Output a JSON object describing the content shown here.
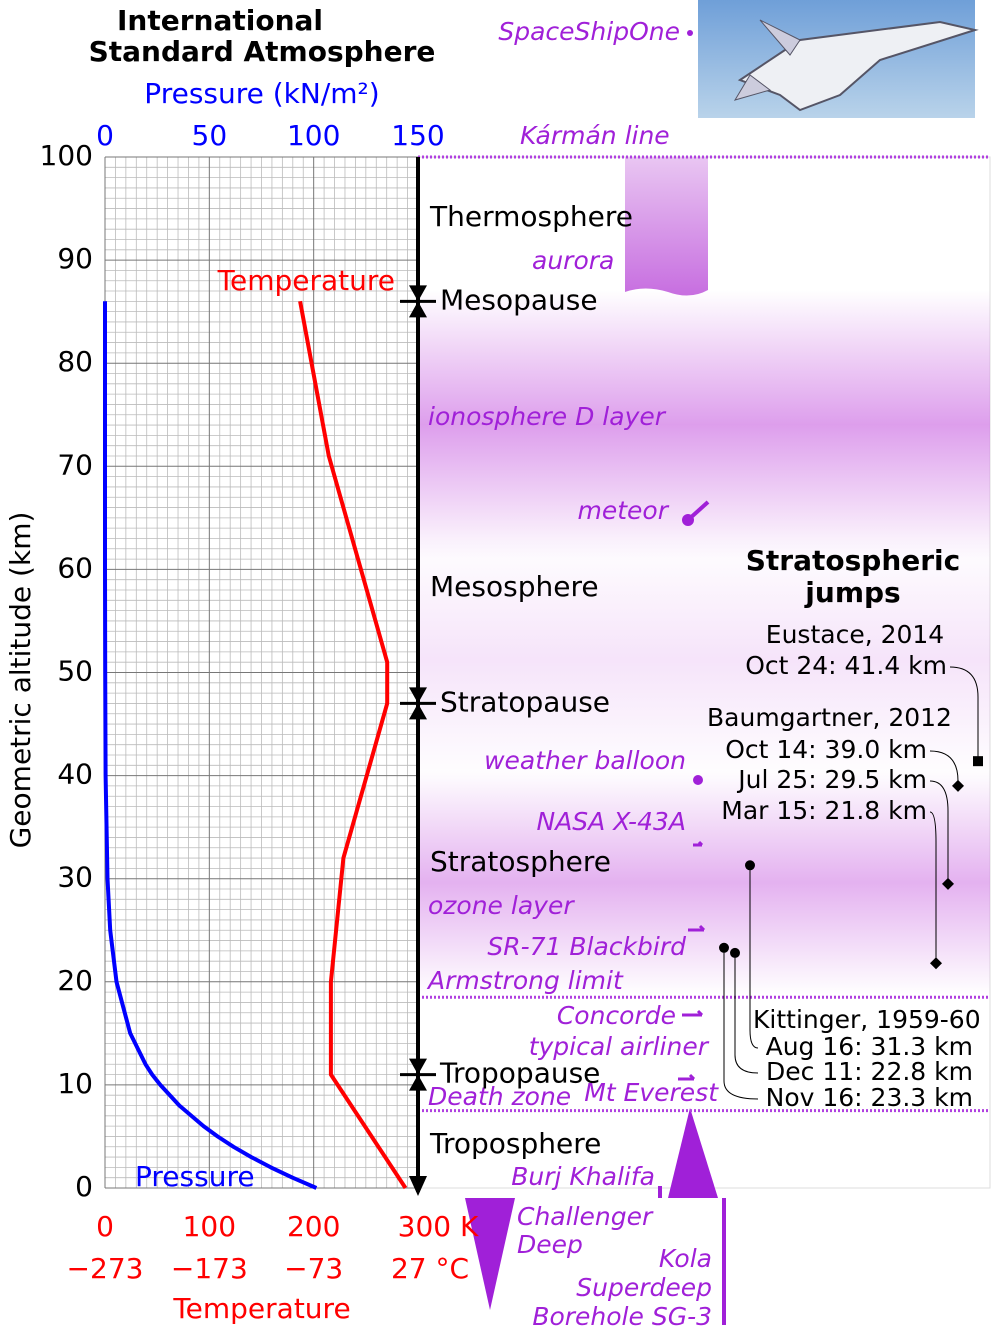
{
  "chart_data": {
    "type": "line",
    "title": [
      "International",
      "Standard Atmosphere"
    ],
    "y_label": "Geometric altitude (km)",
    "x_label": "Pressure (kN/m²)",
    "x2_label": "Temperature",
    "ylim": [
      0,
      100
    ],
    "yticks": [
      0,
      10,
      20,
      30,
      40,
      50,
      60,
      70,
      80,
      90,
      100
    ],
    "xlim": [
      0,
      150
    ],
    "xticks": [
      0,
      50,
      100,
      150
    ],
    "x2lim": [
      0,
      300
    ],
    "x2ticks": [
      0,
      100,
      200,
      {
        "value": 300,
        "label": "300 K"
      }
    ],
    "x3lim": [
      -273,
      27
    ],
    "x3ticks": [
      {
        "value": -273,
        "label": "−273"
      },
      {
        "value": -173,
        "label": "−173"
      },
      {
        "value": -73,
        "label": "−73"
      },
      {
        "value": 27,
        "label": "27 °C"
      }
    ],
    "grid": true,
    "series": [
      {
        "name": "Pressure",
        "color": "#0000ff",
        "axis": "x",
        "x": [
          101.3,
          89.9,
          79.5,
          70.1,
          61.6,
          54.0,
          47.2,
          35.6,
          26.5,
          22.6,
          19.4,
          12.1,
          5.5,
          2.5,
          1.2,
          0.29,
          0.08,
          0.02,
          0.005,
          0.0004
        ],
        "values": [
          0,
          1,
          2,
          3,
          4,
          5,
          6,
          8,
          10,
          11,
          12,
          15,
          20,
          25,
          30,
          40,
          50,
          60,
          70,
          86
        ]
      },
      {
        "name": "Temperature",
        "color": "#ff0000",
        "axis": "x2",
        "x": [
          288,
          216.5,
          216.5,
          228.5,
          270.5,
          270.5,
          214.5,
          187
        ],
        "values": [
          0,
          11,
          20,
          32,
          47,
          51,
          71,
          86
        ]
      }
    ],
    "layers": [
      {
        "name": "Troposphere"
      },
      {
        "name": "Stratosphere"
      },
      {
        "name": "Mesosphere"
      },
      {
        "name": "Thermosphere"
      }
    ],
    "boundaries": [
      {
        "name": "Tropopause",
        "altitude": 11
      },
      {
        "name": "Stratopause",
        "altitude": 47
      },
      {
        "name": "Mesopause",
        "altitude": 86
      }
    ],
    "reference_lines": [
      {
        "label": "Kármán line",
        "altitude": 100
      },
      {
        "label": "Armstrong limit",
        "altitude": 18.5
      },
      {
        "label": "Death zone",
        "altitude": 7.5
      }
    ],
    "features": [
      [
        "SpaceShipOne"
      ],
      [
        "aurora"
      ],
      [
        "ionosphere D layer"
      ],
      [
        "meteor"
      ],
      [
        "weather balloon"
      ],
      [
        "NASA X-43A"
      ],
      [
        "ozone layer"
      ],
      [
        "SR-71 Blackbird"
      ],
      [
        "Concorde"
      ],
      [
        "typical airliner"
      ],
      [
        "Mt Everest"
      ],
      [
        "Burj Khalifa"
      ],
      [
        "Challenger",
        "Deep"
      ],
      [
        "Kola",
        "Superdeep",
        "Borehole SG-3"
      ]
    ],
    "jumps": {
      "title": [
        "Stratospheric",
        "jumps"
      ],
      "jumpers": [
        {
          "name": "Eustace, 2014",
          "records": [
            {
              "label": "Oct 24: 41.4 km",
              "altitude": 41.4
            }
          ]
        },
        {
          "name": "Baumgartner, 2012",
          "records": [
            {
              "label": "Oct 14: 39.0 km",
              "altitude": 39.0
            },
            {
              "label": "Jul 25: 29.5 km",
              "altitude": 29.5
            },
            {
              "label": "Mar 15: 21.8 km",
              "altitude": 21.8
            }
          ]
        },
        {
          "name": "Kittinger, 1959-60",
          "records": [
            {
              "label": "Aug 16: 31.3 km",
              "altitude": 31.3
            },
            {
              "label": "Dec 11: 22.8 km",
              "altitude": 22.8
            },
            {
              "label": "Nov 16: 23.3 km",
              "altitude": 23.3
            }
          ]
        }
      ]
    }
  }
}
